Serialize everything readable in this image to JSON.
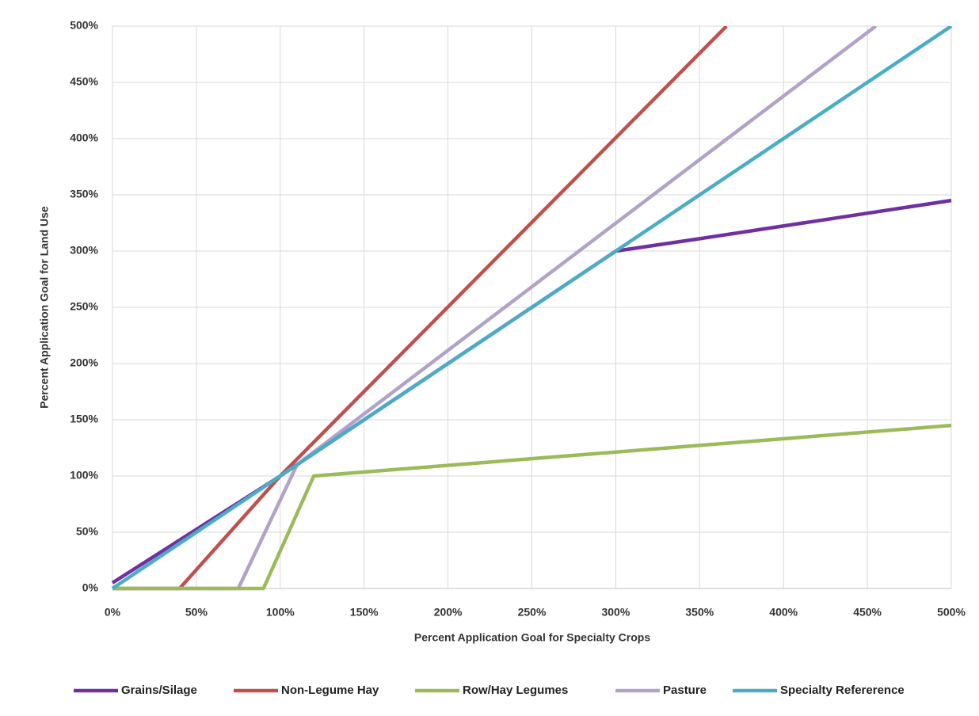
{
  "chart_data": {
    "type": "line",
    "xlabel": "Percent Application Goal for Specialty Crops",
    "ylabel": "Percent Application Goal for Land Use",
    "xlim": [
      0,
      500
    ],
    "ylim": [
      0,
      500
    ],
    "xticks": [
      {
        "value": 0,
        "label": "0%"
      },
      {
        "value": 50,
        "label": "50%"
      },
      {
        "value": 100,
        "label": "100%"
      },
      {
        "value": 150,
        "label": "150%"
      },
      {
        "value": 200,
        "label": "200%"
      },
      {
        "value": 250,
        "label": "250%"
      },
      {
        "value": 300,
        "label": "300%"
      },
      {
        "value": 350,
        "label": "350%"
      },
      {
        "value": 400,
        "label": "400%"
      },
      {
        "value": 450,
        "label": "450%"
      },
      {
        "value": 500,
        "label": "500%"
      }
    ],
    "yticks": [
      {
        "value": 0,
        "label": "0%"
      },
      {
        "value": 50,
        "label": "50%"
      },
      {
        "value": 100,
        "label": "100%"
      },
      {
        "value": 150,
        "label": "150%"
      },
      {
        "value": 200,
        "label": "200%"
      },
      {
        "value": 250,
        "label": "250%"
      },
      {
        "value": 300,
        "label": "300%"
      },
      {
        "value": 350,
        "label": "350%"
      },
      {
        "value": 400,
        "label": "400%"
      },
      {
        "value": 450,
        "label": "450%"
      },
      {
        "value": 500,
        "label": "500%"
      }
    ],
    "grid": true,
    "legend": "bottom",
    "series": [
      {
        "name": "Grains/Silage",
        "color": "#7030a0",
        "x": [
          0,
          100,
          300,
          350,
          500
        ],
        "values": [
          5,
          100,
          300,
          311,
          345
        ]
      },
      {
        "name": "Non-Legume Hay",
        "color": "#c0504d",
        "x": [
          0,
          40,
          100,
          366
        ],
        "values": [
          0,
          0,
          100,
          500
        ]
      },
      {
        "name": "Row/Hay Legumes",
        "color": "#9bbb59",
        "x": [
          0,
          90,
          120,
          500
        ],
        "values": [
          0,
          0,
          100,
          145
        ]
      },
      {
        "name": "Pasture",
        "color": "#b3a2c7",
        "x": [
          0,
          75,
          110,
          455
        ],
        "values": [
          0,
          0,
          110,
          500
        ]
      },
      {
        "name": "Specialty Refererence",
        "color": "#4bacc6",
        "x": [
          0,
          500
        ],
        "values": [
          0,
          500
        ]
      }
    ]
  }
}
